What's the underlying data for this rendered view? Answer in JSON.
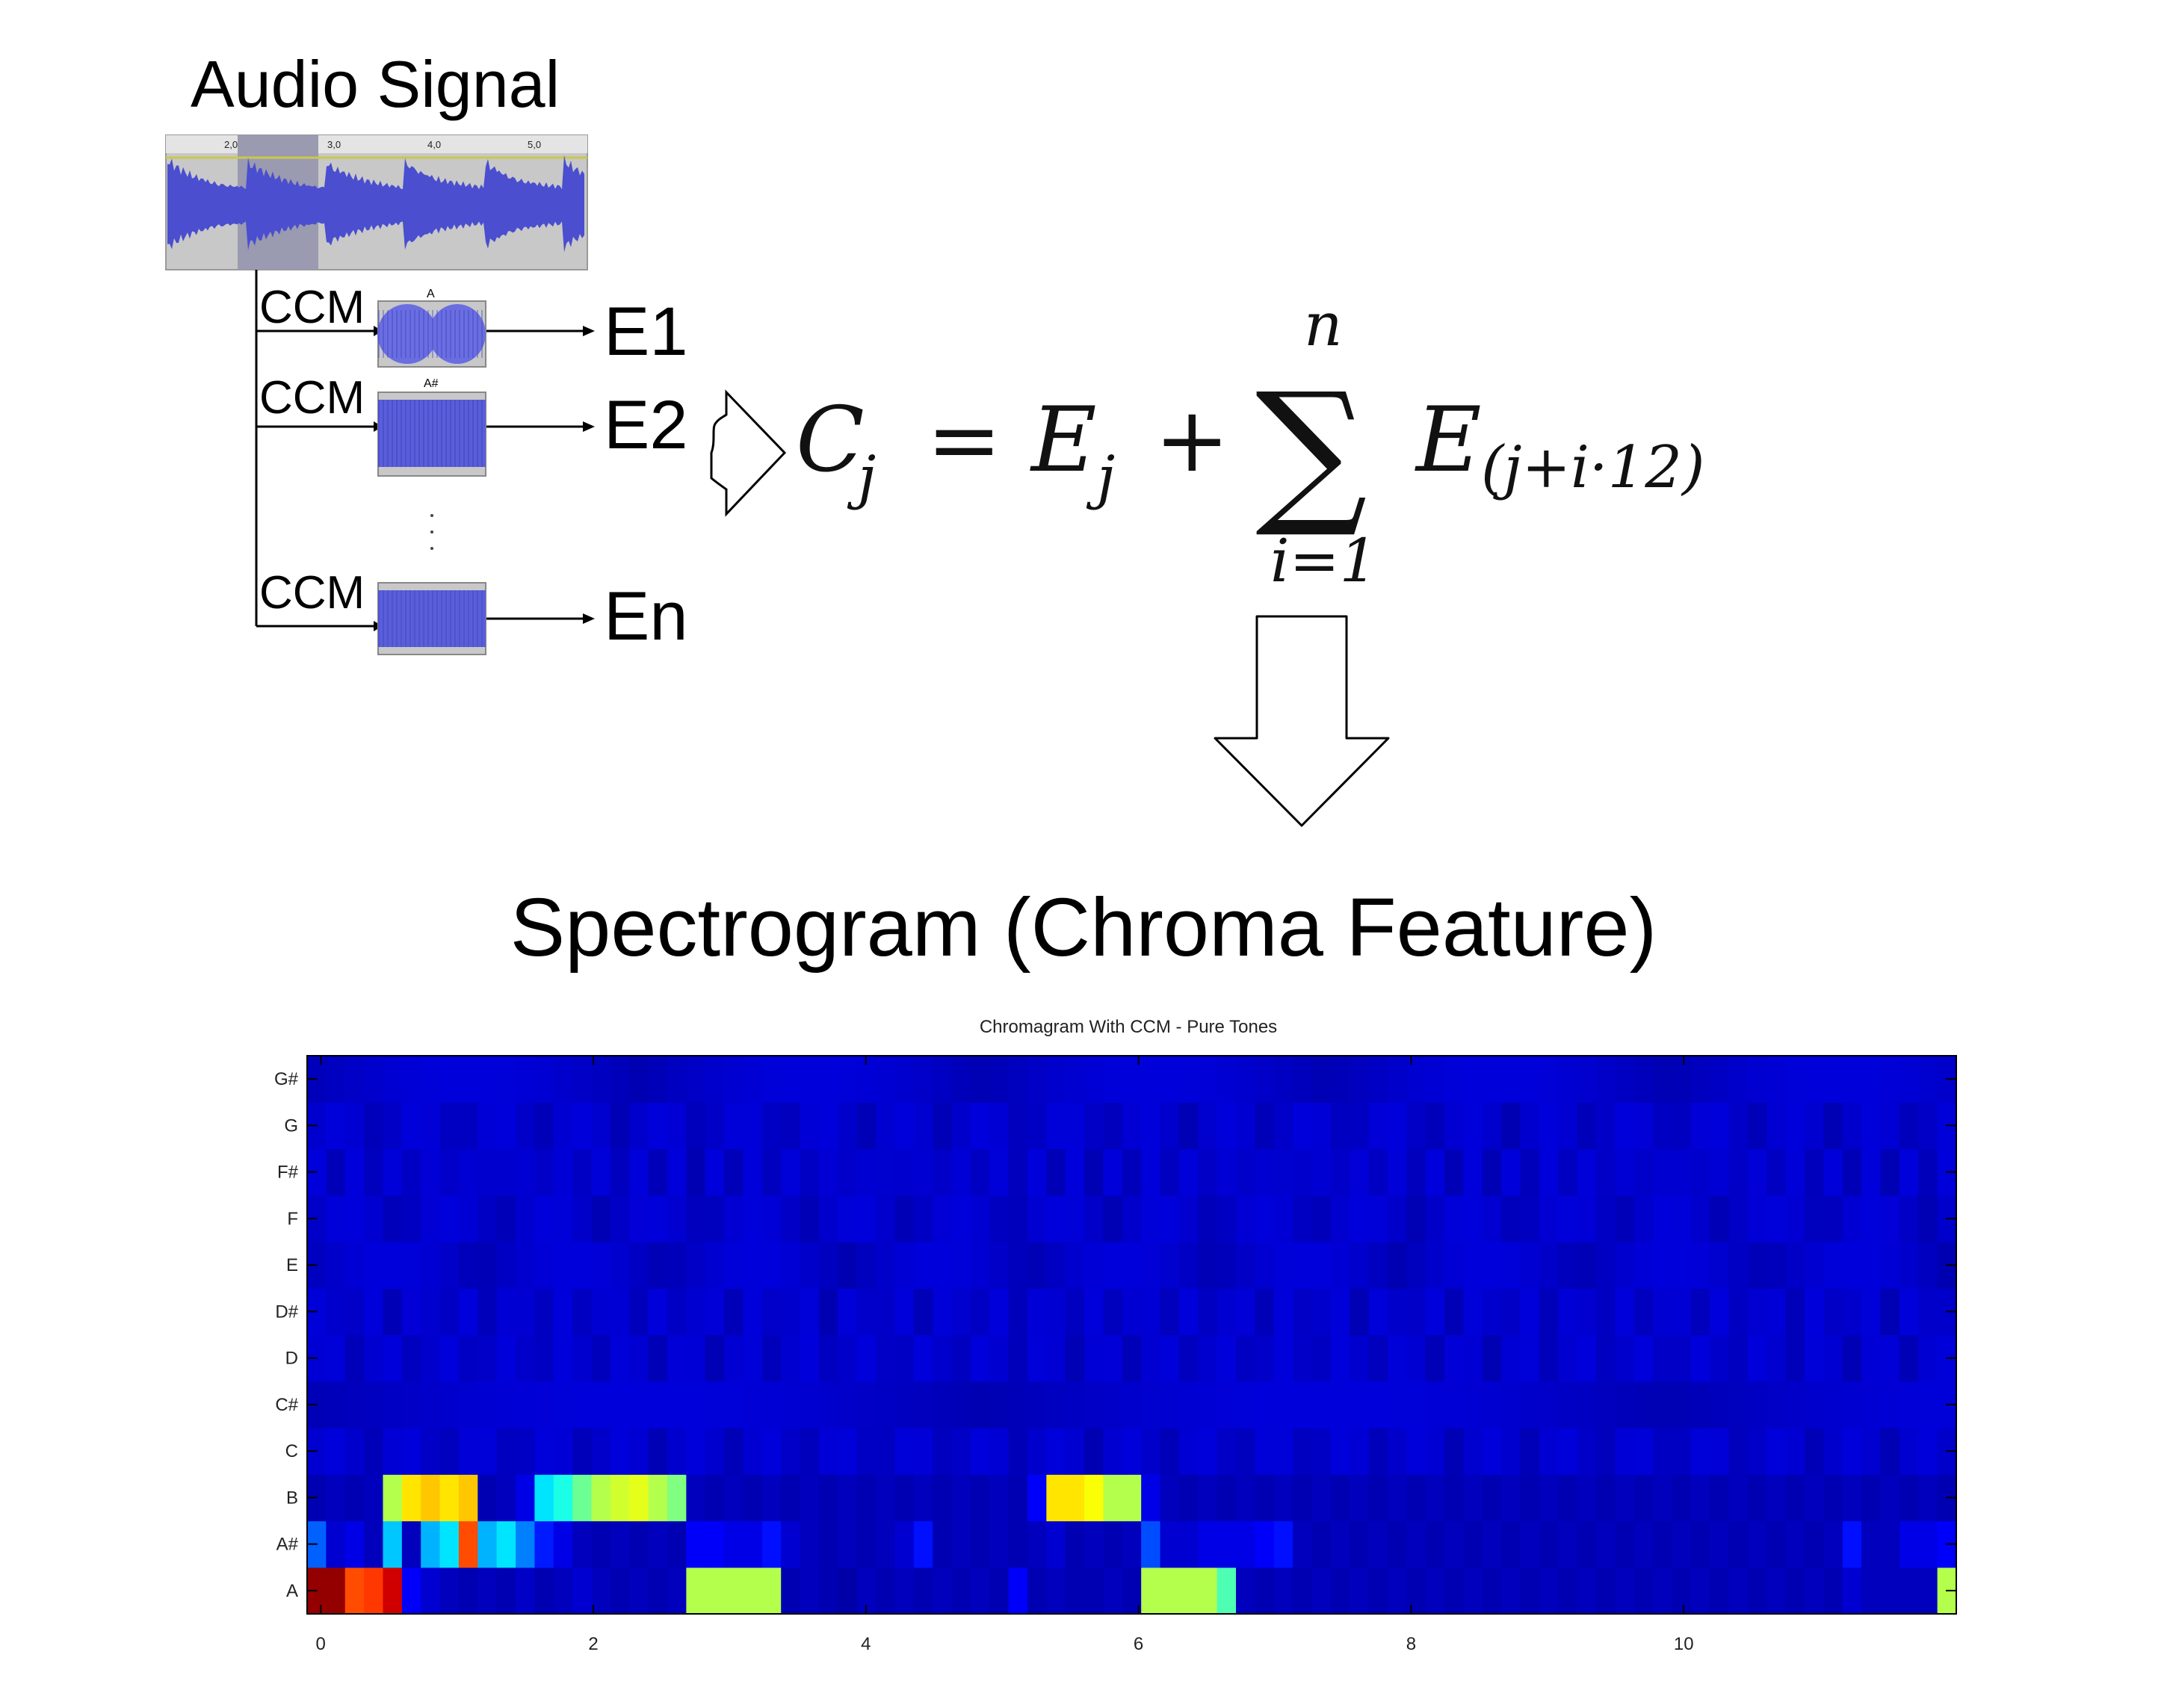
{
  "audio": {
    "title": "Audio Signal",
    "ruler_ticks": [
      "2,0",
      "3,0",
      "4,0",
      "5,0"
    ],
    "colors": {
      "wave": "#4a4ecf",
      "background": "#c8c8c8",
      "selection": "#9a9ab0"
    }
  },
  "branches": [
    {
      "ccm_label": "CCM",
      "clip_label": "A",
      "output": "E1"
    },
    {
      "ccm_label": "CCM",
      "clip_label": "A#",
      "output": "E2"
    },
    {
      "ccm_label": "CCM",
      "clip_label": "",
      "output": "En"
    }
  ],
  "formula": {
    "lhs": "C",
    "lhs_sub": "j",
    "eq": "=",
    "term": "E",
    "term_sub": "j",
    "plus": "+",
    "sum_sym": "∑",
    "upper": "n",
    "lower": "i=1",
    "summand": "E",
    "summand_sub": "(j+i·12)"
  },
  "spectrogram_title": "Spectrogram (Chroma Feature)",
  "chart_data": {
    "type": "heatmap",
    "title": "Chromagram With CCM - Pure Tones",
    "xlabel": "",
    "ylabel": "",
    "x_ticks": [
      0,
      2,
      4,
      6,
      8,
      10
    ],
    "x_range": [
      -0.1,
      12.0
    ],
    "y_labels": [
      "A",
      "A#",
      "B",
      "C",
      "C#",
      "D",
      "D#",
      "E",
      "F",
      "F#",
      "G",
      "G#"
    ],
    "colormap": "jet",
    "values": {
      "A": [
        0.98,
        0.98,
        0.8,
        0.82,
        0.92,
        0.12,
        0.08,
        0.06,
        0.05,
        0.06,
        0.05,
        0.07,
        0.05,
        0.06,
        0.08,
        0.06,
        0.05,
        0.06,
        0.05,
        0.06,
        0.55,
        0.55,
        0.55,
        0.55,
        0.55,
        0.05,
        0.06,
        0.05,
        0.04,
        0.06,
        0.05,
        0.06,
        0.05,
        0.06,
        0.05,
        0.06,
        0.05,
        0.12,
        0.05,
        0.06,
        0.05,
        0.05,
        0.06,
        0.05,
        0.55,
        0.55,
        0.55,
        0.55,
        0.45,
        0.06,
        0.05,
        0.06,
        0.05,
        0.06,
        0.05,
        0.06,
        0.05,
        0.06,
        0.05,
        0.06,
        0.05,
        0.06,
        0.05,
        0.06,
        0.05,
        0.06,
        0.05,
        0.06,
        0.05,
        0.06,
        0.05,
        0.06,
        0.05,
        0.06,
        0.05,
        0.06,
        0.05,
        0.06,
        0.05,
        0.06,
        0.05,
        0.08,
        0.06,
        0.06,
        0.06,
        0.06,
        0.55
      ],
      "A#": [
        0.22,
        0.08,
        0.1,
        0.06,
        0.32,
        0.06,
        0.3,
        0.35,
        0.8,
        0.3,
        0.35,
        0.25,
        0.15,
        0.1,
        0.06,
        0.05,
        0.06,
        0.05,
        0.06,
        0.05,
        0.12,
        0.12,
        0.1,
        0.1,
        0.14,
        0.08,
        0.06,
        0.05,
        0.06,
        0.05,
        0.06,
        0.08,
        0.14,
        0.05,
        0.06,
        0.05,
        0.06,
        0.05,
        0.06,
        0.08,
        0.05,
        0.06,
        0.05,
        0.06,
        0.2,
        0.08,
        0.08,
        0.1,
        0.1,
        0.1,
        0.12,
        0.14,
        0.06,
        0.05,
        0.06,
        0.05,
        0.06,
        0.05,
        0.06,
        0.05,
        0.06,
        0.05,
        0.06,
        0.05,
        0.06,
        0.05,
        0.06,
        0.05,
        0.06,
        0.05,
        0.06,
        0.05,
        0.06,
        0.05,
        0.06,
        0.05,
        0.06,
        0.05,
        0.06,
        0.05,
        0.06,
        0.14,
        0.06,
        0.06,
        0.1,
        0.1,
        0.12
      ],
      "B": [
        0.05,
        0.06,
        0.05,
        0.06,
        0.55,
        0.65,
        0.68,
        0.65,
        0.68,
        0.05,
        0.06,
        0.1,
        0.35,
        0.4,
        0.48,
        0.55,
        0.58,
        0.6,
        0.55,
        0.5,
        0.06,
        0.05,
        0.06,
        0.05,
        0.06,
        0.05,
        0.06,
        0.05,
        0.06,
        0.05,
        0.06,
        0.05,
        0.06,
        0.05,
        0.06,
        0.05,
        0.06,
        0.05,
        0.12,
        0.65,
        0.65,
        0.62,
        0.55,
        0.55,
        0.1,
        0.06,
        0.05,
        0.06,
        0.05,
        0.06,
        0.05,
        0.06,
        0.05,
        0.06,
        0.05,
        0.06,
        0.05,
        0.06,
        0.05,
        0.06,
        0.05,
        0.06,
        0.05,
        0.06,
        0.05,
        0.06,
        0.05,
        0.06,
        0.05,
        0.06,
        0.05,
        0.06,
        0.05,
        0.06,
        0.05,
        0.06,
        0.05,
        0.06,
        0.05,
        0.06,
        0.05,
        0.06,
        0.05,
        0.06,
        0.05,
        0.06,
        0.05
      ]
    }
  }
}
